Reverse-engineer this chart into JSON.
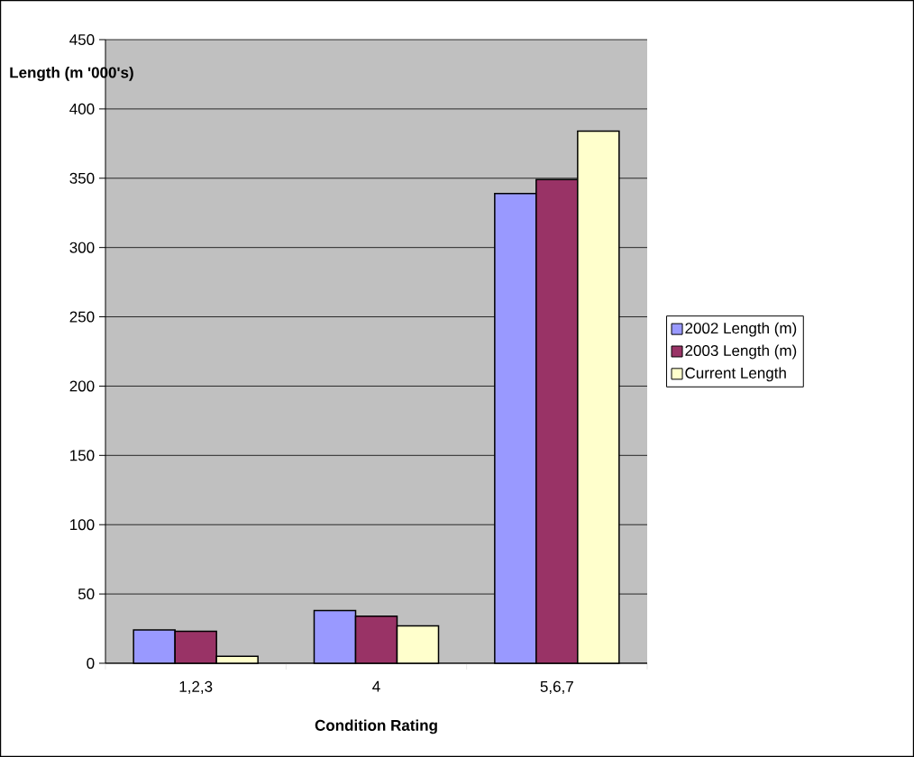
{
  "chart_data": {
    "type": "bar",
    "xlabel": "Condition Rating",
    "ylabel": "Length (m '000's)",
    "categories": [
      "1,2,3",
      "4",
      "5,6,7"
    ],
    "series": [
      {
        "name": "2002 Length (m)",
        "color": "#9999ff",
        "values": [
          24,
          38,
          339
        ]
      },
      {
        "name": "2003 Length (m)",
        "color": "#993366",
        "values": [
          23,
          34,
          349
        ]
      },
      {
        "name": "Current Length",
        "color": "#ffffcc",
        "values": [
          5,
          27,
          384
        ]
      }
    ],
    "ylim": [
      0,
      450
    ],
    "yticks": [
      0,
      50,
      100,
      150,
      200,
      250,
      300,
      350,
      400,
      450
    ],
    "grid": "y",
    "legend": "right"
  }
}
